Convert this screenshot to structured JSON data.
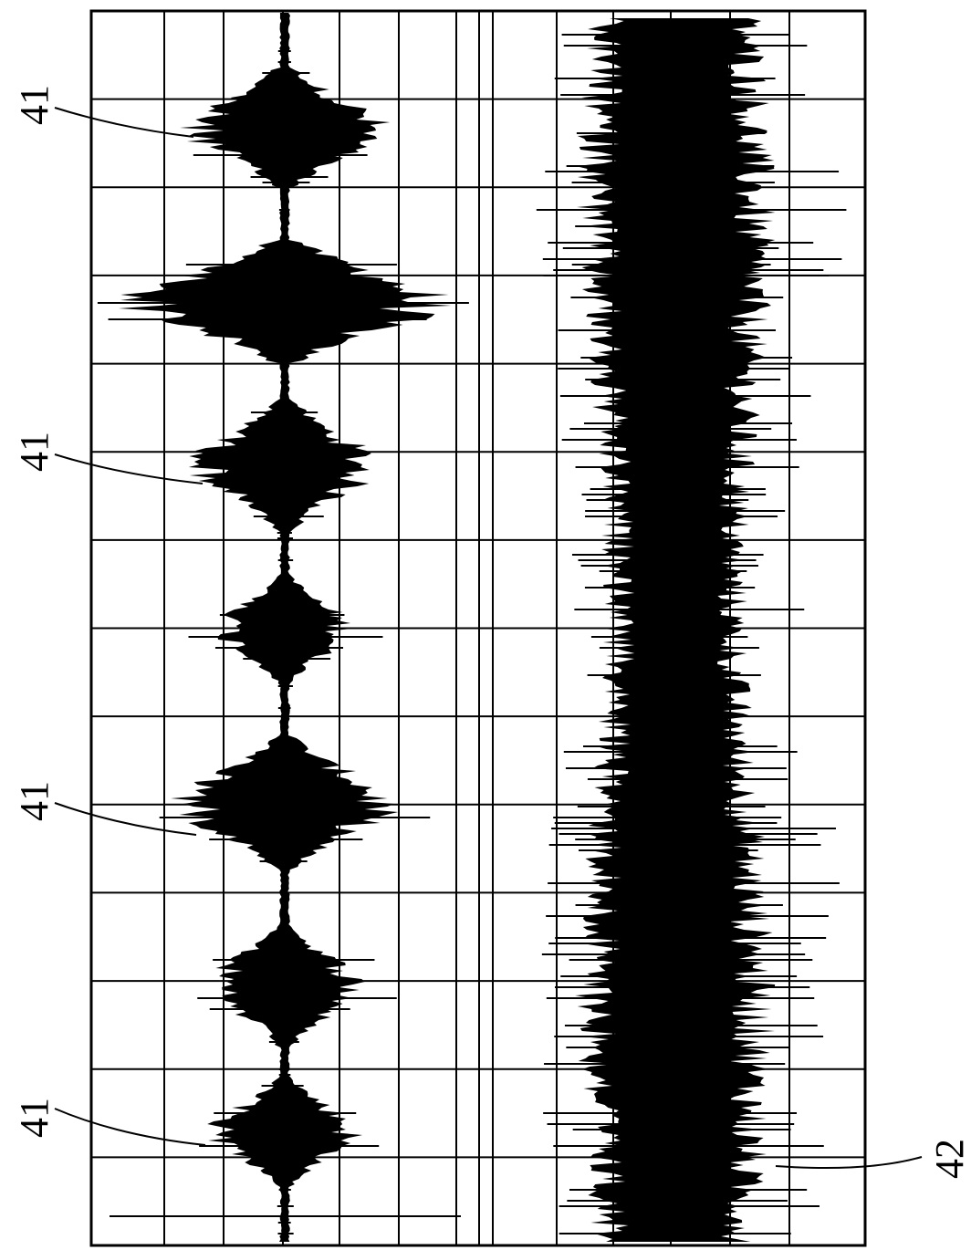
{
  "labels": [
    "41",
    "41",
    "41",
    "41",
    "42"
  ]
}
